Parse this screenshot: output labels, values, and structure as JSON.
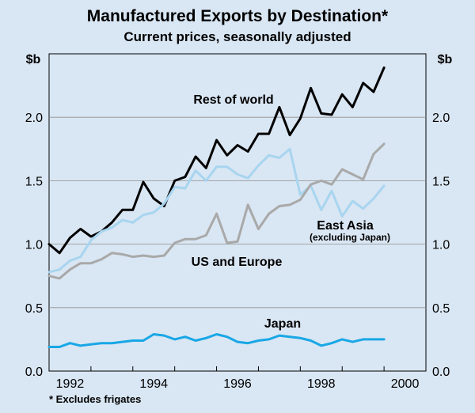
{
  "chart_data": {
    "type": "line",
    "title": "Manufactured Exports by Destination*",
    "subtitle": "Current prices, seasonally adjusted",
    "footnote": "* Excludes frigates",
    "y_unit_left": "$b",
    "y_unit_right": "$b",
    "ylim": [
      0,
      2.5
    ],
    "xlim": [
      1991.5,
      2000.5
    ],
    "y_ticks": [
      "0.0",
      "0.5",
      "1.0",
      "1.5",
      "2.0"
    ],
    "y_tick_values": [
      0,
      0.5,
      1.0,
      1.5,
      2.0
    ],
    "x_ticks": [
      "1992",
      "1994",
      "1996",
      "1998",
      "2000"
    ],
    "x_tick_values": [
      1992,
      1994,
      1996,
      1998,
      2000
    ],
    "x_start": 1991.5,
    "x_step": 0.25,
    "series": [
      {
        "name": "Rest of world",
        "color": "#000000",
        "values": [
          1.0,
          0.93,
          1.05,
          1.12,
          1.06,
          1.1,
          1.17,
          1.27,
          1.27,
          1.49,
          1.36,
          1.3,
          1.5,
          1.53,
          1.69,
          1.6,
          1.82,
          1.7,
          1.78,
          1.73,
          1.87,
          1.87,
          2.08,
          1.86,
          1.99,
          2.23,
          2.03,
          2.02,
          2.18,
          2.08,
          2.27,
          2.2,
          2.39
        ]
      },
      {
        "name": "East Asia",
        "sublabel": "(excluding Japan)",
        "color": "#a8d5ef",
        "values": [
          0.78,
          0.8,
          0.87,
          0.9,
          1.03,
          1.1,
          1.13,
          1.19,
          1.17,
          1.23,
          1.25,
          1.32,
          1.45,
          1.44,
          1.58,
          1.5,
          1.61,
          1.61,
          1.55,
          1.52,
          1.62,
          1.7,
          1.68,
          1.75,
          1.39,
          1.46,
          1.27,
          1.42,
          1.22,
          1.34,
          1.28,
          1.36,
          1.46
        ]
      },
      {
        "name": "US and Europe",
        "color": "#a9a9a9",
        "values": [
          0.75,
          0.73,
          0.8,
          0.85,
          0.85,
          0.88,
          0.93,
          0.92,
          0.9,
          0.91,
          0.9,
          0.91,
          1.01,
          1.04,
          1.04,
          1.07,
          1.24,
          1.01,
          1.02,
          1.31,
          1.12,
          1.24,
          1.3,
          1.31,
          1.35,
          1.47,
          1.5,
          1.47,
          1.59,
          1.55,
          1.51,
          1.71,
          1.79
        ]
      },
      {
        "name": "Japan",
        "color": "#18a7e6",
        "values": [
          0.19,
          0.19,
          0.22,
          0.2,
          0.21,
          0.22,
          0.22,
          0.23,
          0.24,
          0.24,
          0.29,
          0.28,
          0.25,
          0.27,
          0.24,
          0.26,
          0.29,
          0.27,
          0.23,
          0.22,
          0.24,
          0.25,
          0.28,
          0.27,
          0.26,
          0.24,
          0.2,
          0.22,
          0.25,
          0.23,
          0.25,
          0.25,
          0.25
        ]
      }
    ]
  }
}
